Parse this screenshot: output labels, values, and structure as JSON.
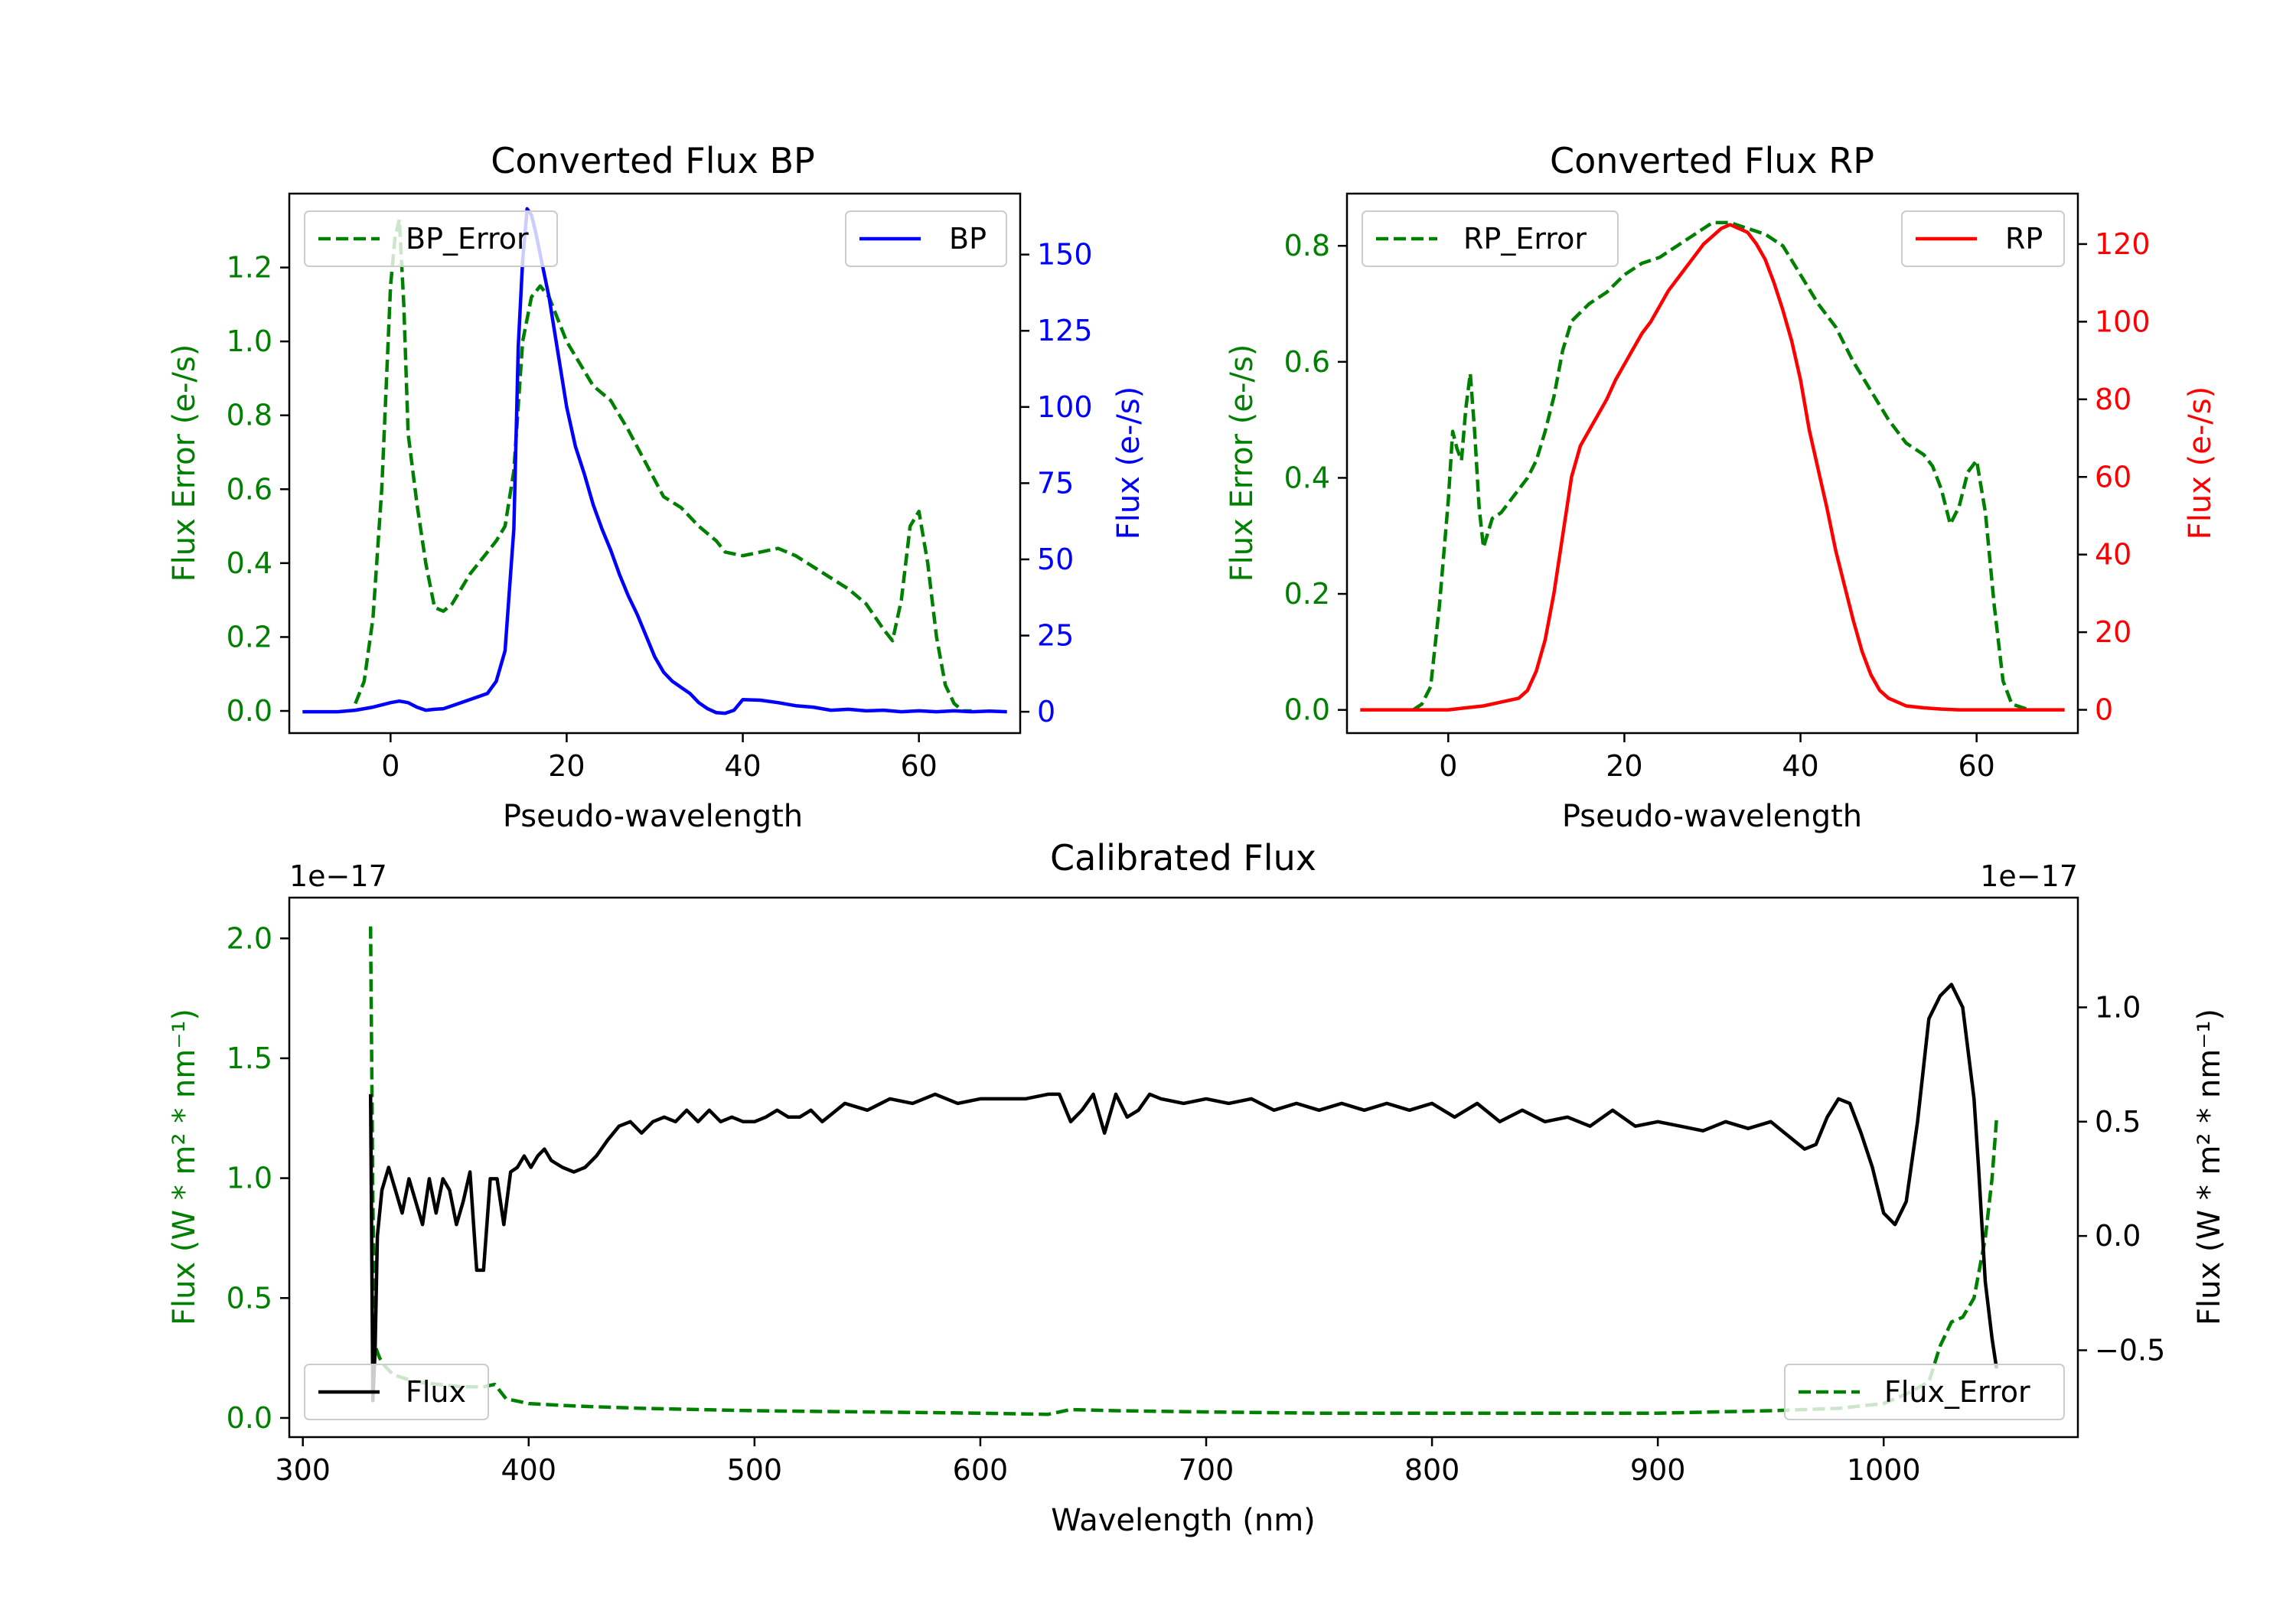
{
  "colors": {
    "error": "#008000",
    "bp": "#0000ff",
    "rp": "#ff0000",
    "flux": "#000000"
  },
  "chart_data": [
    {
      "id": "bp",
      "type": "line",
      "title": "Converted Flux BP",
      "xlabel": "Pseudo-wavelength",
      "ylabel_left": "Flux Error (e-/s)",
      "ylabel_right": "Flux (e-/s)",
      "xlim": [
        -11.5,
        71.5
      ],
      "ylim_left": [
        -0.06,
        1.4
      ],
      "ylim_right": [
        -7,
        170
      ],
      "xticks": [
        0,
        20,
        40,
        60
      ],
      "yticks_left": [
        0.0,
        0.2,
        0.4,
        0.6,
        0.8,
        1.0,
        1.2
      ],
      "yticks_right": [
        0,
        25,
        50,
        75,
        100,
        125,
        150
      ],
      "series": [
        {
          "name": "BP_Error",
          "axis": "left",
          "style": "dashed",
          "color": "#008000",
          "x": [
            -4,
            -3,
            -2,
            -1,
            0,
            0.5,
            1,
            1.5,
            2,
            3,
            4,
            5,
            6,
            7,
            8,
            9,
            10,
            12,
            13,
            14,
            15,
            16,
            17,
            18,
            19,
            20,
            21,
            22,
            23,
            25,
            27,
            29,
            31,
            33,
            35,
            37,
            38,
            40,
            42,
            44,
            46,
            48,
            50,
            52,
            54,
            56,
            57,
            58,
            59,
            60,
            61,
            62,
            63,
            64,
            65,
            66
          ],
          "values": [
            0.02,
            0.08,
            0.25,
            0.6,
            1.15,
            1.28,
            1.33,
            1.1,
            0.75,
            0.56,
            0.4,
            0.28,
            0.27,
            0.29,
            0.33,
            0.37,
            0.4,
            0.46,
            0.5,
            0.65,
            1.0,
            1.12,
            1.15,
            1.12,
            1.06,
            1.0,
            0.96,
            0.92,
            0.88,
            0.84,
            0.76,
            0.67,
            0.58,
            0.55,
            0.5,
            0.46,
            0.43,
            0.42,
            0.43,
            0.44,
            0.42,
            0.39,
            0.36,
            0.33,
            0.29,
            0.22,
            0.19,
            0.3,
            0.5,
            0.54,
            0.4,
            0.2,
            0.07,
            0.02,
            0.0,
            0.0
          ]
        },
        {
          "name": "BP",
          "axis": "right",
          "style": "solid",
          "color": "#0000ff",
          "x": [
            -10,
            -8,
            -6,
            -4,
            -2,
            0,
            1,
            2,
            3,
            4,
            5,
            6,
            7,
            8,
            9,
            10,
            11,
            12,
            13,
            14,
            14.5,
            15,
            15.5,
            16,
            16.5,
            17,
            18,
            19,
            20,
            21,
            22,
            23,
            24,
            25,
            26,
            27,
            28,
            29,
            30,
            31,
            32,
            33,
            34,
            35,
            36,
            37,
            38,
            39,
            40,
            42,
            44,
            46,
            48,
            50,
            52,
            54,
            56,
            58,
            60,
            62,
            64,
            66,
            68,
            70
          ],
          "values": [
            0,
            0,
            0,
            0.5,
            1.5,
            3,
            3.5,
            3,
            1.5,
            0.5,
            0.8,
            1,
            2,
            3,
            4,
            5,
            6,
            10,
            20,
            60,
            120,
            148,
            165,
            163,
            157,
            150,
            136,
            118,
            100,
            87,
            78,
            68,
            60,
            53,
            45,
            38,
            32,
            25,
            18,
            13,
            10,
            8,
            6,
            3,
            1,
            -0.3,
            -0.5,
            0.5,
            4,
            3.8,
            3,
            2,
            1.5,
            0.5,
            0.8,
            0.3,
            0.5,
            0,
            0.3,
            0,
            0.3,
            0,
            0.2,
            0
          ]
        }
      ],
      "legend_left": "BP_Error",
      "legend_right": "BP"
    },
    {
      "id": "rp",
      "type": "line",
      "title": "Converted Flux RP",
      "xlabel": "Pseudo-wavelength",
      "ylabel_left": "Flux Error (e-/s)",
      "ylabel_right": "Flux (e-/s)",
      "xlim": [
        -11.5,
        71.5
      ],
      "ylim_left": [
        -0.04,
        0.89
      ],
      "ylim_right": [
        -6,
        133
      ],
      "xticks": [
        0,
        20,
        40,
        60
      ],
      "yticks_left": [
        0.0,
        0.2,
        0.4,
        0.6,
        0.8
      ],
      "yticks_right": [
        0,
        20,
        40,
        60,
        80,
        100,
        120
      ],
      "series": [
        {
          "name": "RP_Error",
          "axis": "left",
          "style": "dashed",
          "color": "#008000",
          "x": [
            -4,
            -3,
            -2,
            -1,
            0,
            0.5,
            1,
            1.5,
            2,
            2.5,
            3,
            3.5,
            4,
            5,
            6,
            7,
            8,
            9,
            10,
            11,
            12,
            13,
            14,
            16,
            18,
            20,
            22,
            24,
            26,
            28,
            30,
            32,
            34,
            36,
            38,
            40,
            42,
            44,
            46,
            48,
            50,
            52,
            54,
            55,
            56,
            57,
            58,
            59,
            60,
            61,
            62,
            63,
            64,
            66
          ],
          "values": [
            0.0,
            0.01,
            0.04,
            0.18,
            0.36,
            0.48,
            0.45,
            0.43,
            0.52,
            0.58,
            0.48,
            0.35,
            0.28,
            0.33,
            0.34,
            0.36,
            0.38,
            0.4,
            0.43,
            0.48,
            0.54,
            0.62,
            0.67,
            0.7,
            0.72,
            0.75,
            0.77,
            0.78,
            0.8,
            0.82,
            0.84,
            0.84,
            0.83,
            0.82,
            0.8,
            0.75,
            0.7,
            0.66,
            0.6,
            0.55,
            0.5,
            0.46,
            0.44,
            0.42,
            0.38,
            0.32,
            0.35,
            0.41,
            0.43,
            0.34,
            0.18,
            0.05,
            0.01,
            0.0
          ]
        },
        {
          "name": "RP",
          "axis": "right",
          "style": "solid",
          "color": "#ff0000",
          "x": [
            -10,
            -8,
            -6,
            -4,
            -2,
            0,
            2,
            4,
            6,
            8,
            9,
            10,
            11,
            12,
            13,
            14,
            15,
            16,
            17,
            18,
            19,
            20,
            21,
            22,
            23,
            24,
            25,
            26,
            27,
            28,
            29,
            30,
            31,
            32,
            33,
            34,
            35,
            36,
            37,
            38,
            39,
            40,
            41,
            42,
            43,
            44,
            45,
            46,
            47,
            48,
            49,
            50,
            51,
            52,
            54,
            56,
            58,
            60,
            62,
            64,
            66,
            68,
            70
          ],
          "values": [
            0,
            0,
            0,
            0,
            0,
            0,
            0.5,
            1,
            2,
            3,
            5,
            10,
            18,
            30,
            45,
            60,
            68,
            72,
            76,
            80,
            85,
            89,
            93,
            97,
            100,
            104,
            108,
            111,
            114,
            117,
            120,
            122,
            124,
            125,
            124,
            123,
            120,
            116,
            110,
            103,
            95,
            85,
            72,
            62,
            52,
            41,
            32,
            23,
            15,
            9,
            5,
            3,
            2,
            1,
            0.5,
            0.2,
            0,
            0,
            0,
            0,
            0,
            0,
            0
          ]
        }
      ],
      "legend_left": "RP_Error",
      "legend_right": "RP"
    },
    {
      "id": "cal",
      "type": "line",
      "title": "Calibrated Flux",
      "xlabel": "Wavelength (nm)",
      "ylabel_left": "Flux (W * m² * nm⁻¹)",
      "ylabel_right": "Flux (W * m² * nm⁻¹)",
      "offset_left": "1e−17",
      "offset_right": "1e−17",
      "xlim": [
        294,
        1086
      ],
      "ylim_left": [
        -0.08,
        2.17
      ],
      "ylim_right": [
        -0.88,
        1.48
      ],
      "xticks": [
        300,
        400,
        500,
        600,
        700,
        800,
        900,
        1000
      ],
      "yticks_left": [
        0.0,
        0.5,
        1.0,
        1.5,
        2.0
      ],
      "ytick_labels_left": [
        "0.0",
        "0.5",
        "1.0",
        "1.5",
        "2.0"
      ],
      "yticks_right": [
        -0.5,
        0.0,
        0.5,
        1.0
      ],
      "ytick_labels_right": [
        "−0.5",
        "0.0",
        "0.5",
        "1.0"
      ],
      "series": [
        {
          "name": "Flux_Error",
          "axis": "left",
          "style": "dashed",
          "color": "#008000",
          "x": [
            330,
            331,
            332,
            334,
            336,
            340,
            350,
            360,
            370,
            380,
            385,
            390,
            400,
            420,
            450,
            500,
            550,
            600,
            630,
            640,
            660,
            700,
            750,
            800,
            850,
            900,
            950,
            980,
            1000,
            1010,
            1020,
            1025,
            1030,
            1035,
            1040,
            1045,
            1048,
            1050
          ],
          "values": [
            2.05,
            0.9,
            0.3,
            0.25,
            0.22,
            0.18,
            0.15,
            0.14,
            0.13,
            0.13,
            0.14,
            0.08,
            0.06,
            0.05,
            0.04,
            0.03,
            0.025,
            0.02,
            0.015,
            0.035,
            0.03,
            0.025,
            0.02,
            0.02,
            0.02,
            0.02,
            0.03,
            0.04,
            0.06,
            0.1,
            0.15,
            0.3,
            0.4,
            0.42,
            0.5,
            0.75,
            1.0,
            1.25
          ]
        },
        {
          "name": "Flux",
          "axis": "right",
          "style": "solid",
          "color": "#000000",
          "x": [
            330,
            331,
            332,
            333,
            335,
            338,
            341,
            344,
            347,
            350,
            353,
            356,
            359,
            362,
            365,
            368,
            371,
            374,
            377,
            380,
            383,
            386,
            389,
            392,
            395,
            398,
            401,
            404,
            407,
            410,
            415,
            420,
            425,
            430,
            435,
            440,
            445,
            450,
            455,
            460,
            465,
            470,
            475,
            480,
            485,
            490,
            495,
            500,
            505,
            510,
            515,
            520,
            525,
            530,
            540,
            550,
            560,
            570,
            580,
            590,
            600,
            610,
            620,
            630,
            635,
            640,
            645,
            650,
            655,
            660,
            665,
            670,
            675,
            680,
            690,
            700,
            710,
            720,
            730,
            740,
            750,
            760,
            770,
            780,
            790,
            800,
            810,
            820,
            830,
            840,
            850,
            860,
            870,
            880,
            890,
            900,
            910,
            920,
            930,
            940,
            950,
            960,
            965,
            970,
            975,
            980,
            985,
            990,
            995,
            1000,
            1005,
            1010,
            1015,
            1020,
            1025,
            1030,
            1035,
            1040,
            1042,
            1045,
            1048,
            1050
          ],
          "values": [
            0.62,
            -0.72,
            -0.5,
            0.0,
            0.2,
            0.3,
            0.2,
            0.1,
            0.25,
            0.15,
            0.05,
            0.25,
            0.1,
            0.25,
            0.2,
            0.05,
            0.15,
            0.28,
            -0.15,
            -0.15,
            0.25,
            0.25,
            0.05,
            0.28,
            0.3,
            0.35,
            0.3,
            0.35,
            0.38,
            0.33,
            0.3,
            0.28,
            0.3,
            0.35,
            0.42,
            0.48,
            0.5,
            0.45,
            0.5,
            0.52,
            0.5,
            0.55,
            0.5,
            0.55,
            0.5,
            0.52,
            0.5,
            0.5,
            0.52,
            0.55,
            0.52,
            0.52,
            0.55,
            0.5,
            0.58,
            0.55,
            0.6,
            0.58,
            0.62,
            0.58,
            0.6,
            0.6,
            0.6,
            0.62,
            0.62,
            0.5,
            0.55,
            0.62,
            0.45,
            0.62,
            0.52,
            0.55,
            0.62,
            0.6,
            0.58,
            0.6,
            0.58,
            0.6,
            0.55,
            0.58,
            0.55,
            0.58,
            0.55,
            0.58,
            0.55,
            0.58,
            0.52,
            0.58,
            0.5,
            0.55,
            0.5,
            0.52,
            0.48,
            0.55,
            0.48,
            0.5,
            0.48,
            0.46,
            0.5,
            0.47,
            0.5,
            0.42,
            0.38,
            0.4,
            0.52,
            0.6,
            0.58,
            0.45,
            0.3,
            0.1,
            0.05,
            0.15,
            0.5,
            0.95,
            1.05,
            1.1,
            1.0,
            0.6,
            0.3,
            -0.2,
            -0.45,
            -0.58
          ]
        }
      ],
      "legend_left": "Flux",
      "legend_right": "Flux_Error"
    }
  ]
}
